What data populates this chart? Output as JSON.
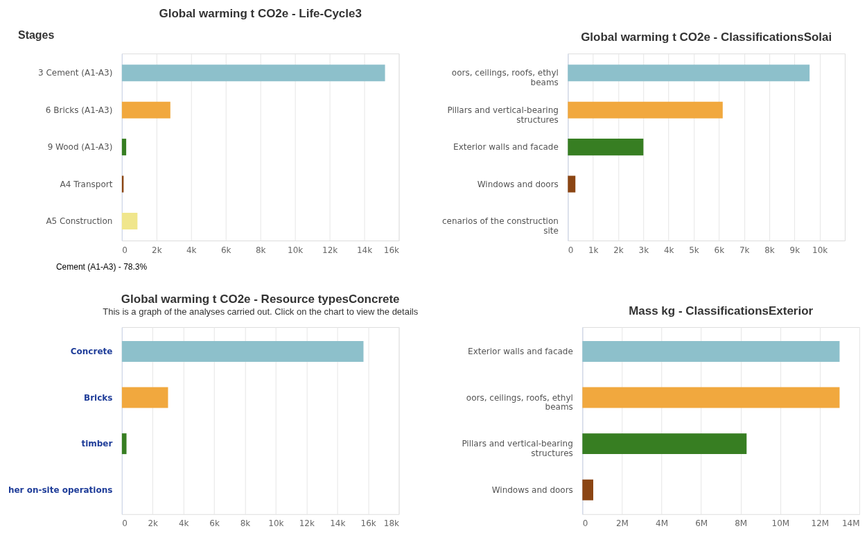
{
  "chart_data": [
    {
      "type": "bar",
      "orientation": "horizontal",
      "title": "Global warming t CO2e - Life-Cycle3",
      "categories": [
        "3 Cement (A1-A3)",
        "6 Bricks (A1-A3)",
        "9 Wood (A1-A3)",
        "A4 Transport",
        "A5 Construction"
      ],
      "values": [
        15200,
        2800,
        250,
        100,
        900
      ],
      "colors": [
        "#8dc0cb",
        "#f1a83e",
        "#377e22",
        "#8b4513",
        "#f0e68c"
      ],
      "xlim": [
        0,
        16000
      ],
      "xticks": [
        0,
        {
          "value": 2000,
          "label": "2k"
        },
        {
          "value": 4000,
          "label": "4k"
        },
        {
          "value": 6000,
          "label": "6k"
        },
        {
          "value": 8000,
          "label": "8k"
        },
        {
          "value": 10000,
          "label": "10k"
        },
        {
          "value": 12000,
          "label": "12k"
        },
        {
          "value": 14000,
          "label": "14k"
        },
        {
          "value": 16000,
          "label": "16k"
        }
      ],
      "grid": "x",
      "annotations": [
        "Stages",
        "Cement (A1-A3) - 78.3%"
      ]
    },
    {
      "type": "bar",
      "orientation": "horizontal",
      "title": "Global warming t CO2e - ClassificationsSolai",
      "categories": [
        "oors, ceilings, roofs, ethyl beams",
        "Pillars and vertical-bearing structures",
        "Exterior walls and facade",
        "Windows and doors",
        "cenarios of the construction site"
      ],
      "values": [
        9600,
        6150,
        3000,
        300,
        0
      ],
      "colors": [
        "#8dc0cb",
        "#f1a83e",
        "#377e22",
        "#8b4513",
        "#f0e68c"
      ],
      "xlim": [
        0,
        11000
      ],
      "xticks": [
        0,
        {
          "value": 1000,
          "label": "1k"
        },
        {
          "value": 2000,
          "label": "2k"
        },
        {
          "value": 3000,
          "label": "3k"
        },
        {
          "value": 4000,
          "label": "4k"
        },
        {
          "value": 5000,
          "label": "5k"
        },
        {
          "value": 6000,
          "label": "6k"
        },
        {
          "value": 7000,
          "label": "7k"
        },
        {
          "value": 8000,
          "label": "8k"
        },
        {
          "value": 9000,
          "label": "9k"
        },
        {
          "value": 10000,
          "label": "10k"
        }
      ],
      "grid": "x"
    },
    {
      "type": "bar",
      "orientation": "horizontal",
      "title": "Global warming t CO2e - Resource typesConcrete",
      "subtitle": "This is a graph of the analyses carried out. Click on the chart to view the details",
      "categories": [
        "Concrete",
        "Bricks",
        "timber",
        "her on-site operations"
      ],
      "values": [
        15700,
        3000,
        300,
        0
      ],
      "colors": [
        "#8dc0cb",
        "#f1a83e",
        "#377e22",
        "#8b4513"
      ],
      "xlim": [
        0,
        18000
      ],
      "xticks": [
        0,
        {
          "value": 2000,
          "label": "2k"
        },
        {
          "value": 4000,
          "label": "4k"
        },
        {
          "value": 6000,
          "label": "6k"
        },
        {
          "value": 8000,
          "label": "8k"
        },
        {
          "value": 10000,
          "label": "10k"
        },
        {
          "value": 12000,
          "label": "12k"
        },
        {
          "value": 14000,
          "label": "14k"
        },
        {
          "value": 16000,
          "label": "16k"
        },
        {
          "value": 18000,
          "label": "18k"
        }
      ],
      "grid": "x"
    },
    {
      "type": "bar",
      "orientation": "horizontal",
      "title": "Mass kg - ClassificationsExterior",
      "categories": [
        "Exterior walls and facade",
        "oors, ceilings, roofs, ethyl beams",
        "Pillars and vertical-bearing structures",
        "Windows and doors"
      ],
      "values": [
        13000000,
        13000000,
        8300000,
        550000
      ],
      "colors": [
        "#8dc0cb",
        "#f1a83e",
        "#377e22",
        "#8b4513"
      ],
      "xlim": [
        0,
        14000000
      ],
      "xticks": [
        0,
        {
          "value": 2000000,
          "label": "2M"
        },
        {
          "value": 4000000,
          "label": "4M"
        },
        {
          "value": 6000000,
          "label": "6M"
        },
        {
          "value": 8000000,
          "label": "8M"
        },
        {
          "value": 10000000,
          "label": "10M"
        },
        {
          "value": 12000000,
          "label": "12M"
        },
        {
          "value": 14000000,
          "label": "14M"
        }
      ],
      "grid": "x"
    }
  ]
}
